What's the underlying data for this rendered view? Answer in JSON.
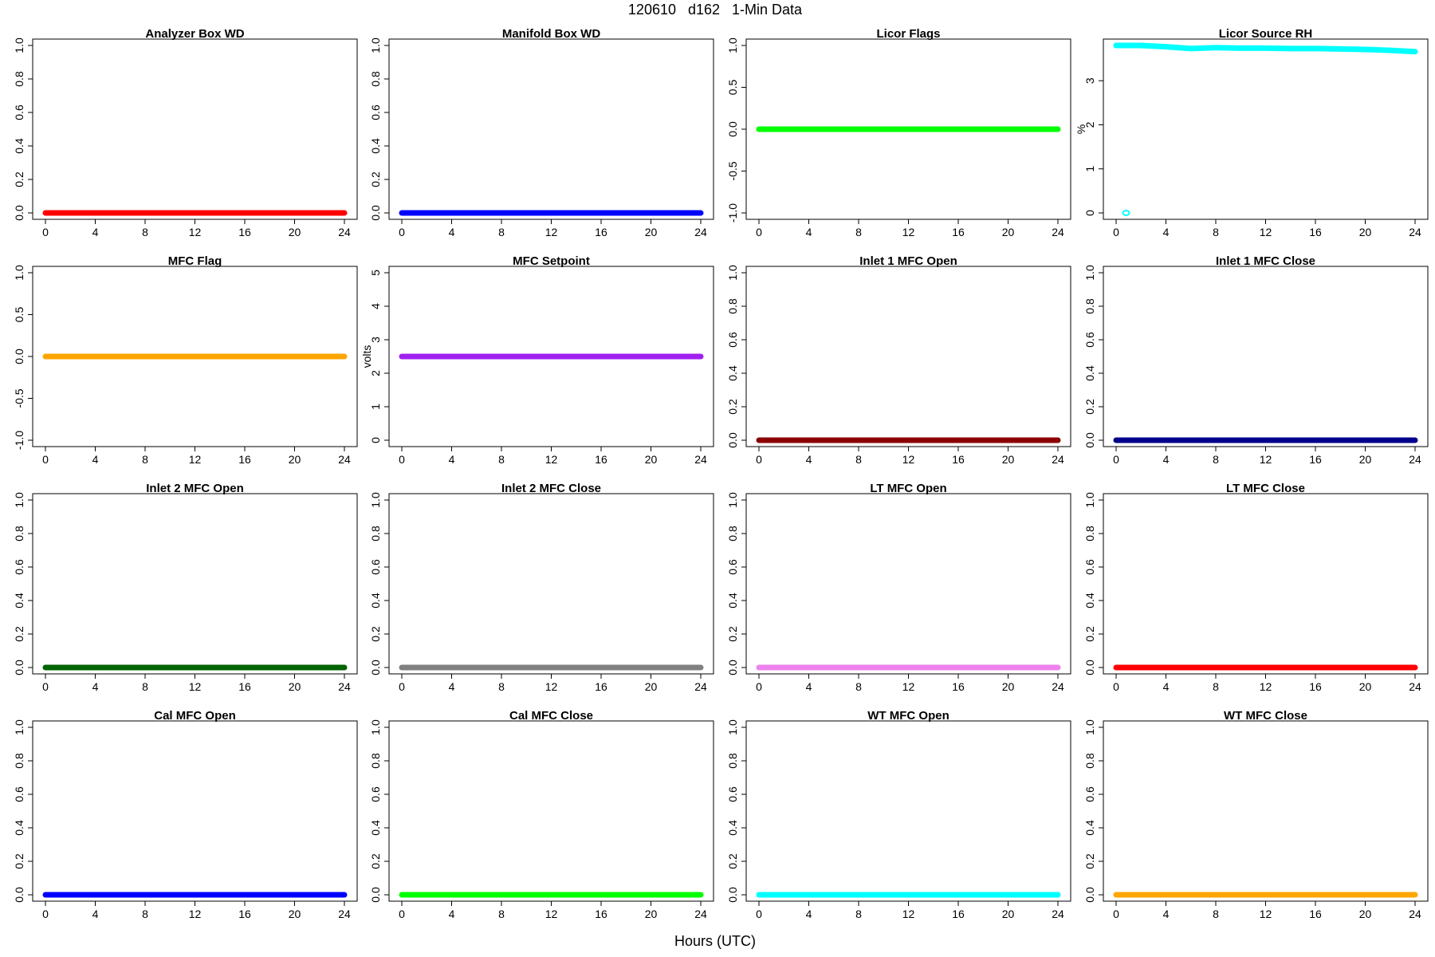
{
  "page": {
    "title": "120610   d162   1-Min Data",
    "xlabel": "Hours (UTC)"
  },
  "chart_data": [
    {
      "type": "scatter",
      "title": "Analyzer Box WD",
      "ylabel": "",
      "color": "#ff0000",
      "xlim": [
        0,
        24
      ],
      "ylim": [
        0,
        1
      ],
      "xticks": [
        "0",
        "4",
        "8",
        "12",
        "16",
        "20",
        "24"
      ],
      "yticks": [
        "0.0",
        "0.2",
        "0.4",
        "0.6",
        "0.8",
        "1.0"
      ],
      "series": [
        {
          "x": [
            0,
            24
          ],
          "y": [
            0,
            0
          ],
          "continuous": true
        }
      ]
    },
    {
      "type": "scatter",
      "title": "Manifold Box WD",
      "ylabel": "",
      "color": "#0000ff",
      "xlim": [
        0,
        24
      ],
      "ylim": [
        0,
        1
      ],
      "xticks": [
        "0",
        "4",
        "8",
        "12",
        "16",
        "20",
        "24"
      ],
      "yticks": [
        "0.0",
        "0.2",
        "0.4",
        "0.6",
        "0.8",
        "1.0"
      ],
      "series": [
        {
          "x": [
            0,
            24
          ],
          "y": [
            0,
            0
          ],
          "continuous": true
        }
      ]
    },
    {
      "type": "scatter",
      "title": "Licor Flags",
      "ylabel": "",
      "color": "#00ff00",
      "xlim": [
        0,
        24
      ],
      "ylim": [
        -1,
        1
      ],
      "xticks": [
        "0",
        "4",
        "8",
        "12",
        "16",
        "20",
        "24"
      ],
      "yticks": [
        "-1.0",
        "-0.5",
        "0.0",
        "0.5",
        "1.0"
      ],
      "series": [
        {
          "x": [
            0,
            24
          ],
          "y": [
            0,
            0
          ],
          "continuous": true
        }
      ]
    },
    {
      "type": "scatter",
      "title": "Licor Source RH",
      "ylabel": "%",
      "color": "#00ffff",
      "xlim": [
        0,
        24
      ],
      "ylim": [
        0,
        3.8
      ],
      "xticks": [
        "0",
        "4",
        "8",
        "12",
        "16",
        "20",
        "24"
      ],
      "yticks": [
        "0",
        "1",
        "2",
        "3"
      ],
      "series": [
        {
          "x": [
            0,
            2,
            4,
            6,
            8,
            10,
            12,
            14,
            16,
            18,
            20,
            22,
            24
          ],
          "y": [
            3.8,
            3.8,
            3.77,
            3.73,
            3.75,
            3.74,
            3.74,
            3.73,
            3.73,
            3.72,
            3.71,
            3.69,
            3.66
          ],
          "continuous": true
        },
        {
          "x": [
            0.8
          ],
          "y": [
            0
          ],
          "continuous": false
        }
      ]
    },
    {
      "type": "scatter",
      "title": "MFC Flag",
      "ylabel": "",
      "color": "#ffa500",
      "xlim": [
        0,
        24
      ],
      "ylim": [
        -1,
        1
      ],
      "xticks": [
        "0",
        "4",
        "8",
        "12",
        "16",
        "20",
        "24"
      ],
      "yticks": [
        "-1.0",
        "-0.5",
        "0.0",
        "0.5",
        "1.0"
      ],
      "series": [
        {
          "x": [
            0,
            24
          ],
          "y": [
            0,
            0
          ],
          "continuous": true
        }
      ]
    },
    {
      "type": "scatter",
      "title": "MFC Setpoint",
      "ylabel": "volts",
      "color": "#a020f0",
      "xlim": [
        0,
        24
      ],
      "ylim": [
        0,
        5
      ],
      "xticks": [
        "0",
        "4",
        "8",
        "12",
        "16",
        "20",
        "24"
      ],
      "yticks": [
        "0",
        "1",
        "2",
        "3",
        "4",
        "5"
      ],
      "series": [
        {
          "x": [
            0,
            24
          ],
          "y": [
            2.5,
            2.5
          ],
          "continuous": true
        }
      ]
    },
    {
      "type": "scatter",
      "title": "Inlet 1 MFC Open",
      "ylabel": "",
      "color": "#8b0000",
      "xlim": [
        0,
        24
      ],
      "ylim": [
        0,
        1
      ],
      "xticks": [
        "0",
        "4",
        "8",
        "12",
        "16",
        "20",
        "24"
      ],
      "yticks": [
        "0.0",
        "0.2",
        "0.4",
        "0.6",
        "0.8",
        "1.0"
      ],
      "series": [
        {
          "x": [
            0,
            24
          ],
          "y": [
            0,
            0
          ],
          "continuous": true
        }
      ]
    },
    {
      "type": "scatter",
      "title": "Inlet 1 MFC Close",
      "ylabel": "",
      "color": "#00008b",
      "xlim": [
        0,
        24
      ],
      "ylim": [
        0,
        1
      ],
      "xticks": [
        "0",
        "4",
        "8",
        "12",
        "16",
        "20",
        "24"
      ],
      "yticks": [
        "0.0",
        "0.2",
        "0.4",
        "0.6",
        "0.8",
        "1.0"
      ],
      "series": [
        {
          "x": [
            0,
            24
          ],
          "y": [
            0,
            0
          ],
          "continuous": true
        }
      ]
    },
    {
      "type": "scatter",
      "title": "Inlet 2 MFC Open",
      "ylabel": "",
      "color": "#006400",
      "xlim": [
        0,
        24
      ],
      "ylim": [
        0,
        1
      ],
      "xticks": [
        "0",
        "4",
        "8",
        "12",
        "16",
        "20",
        "24"
      ],
      "yticks": [
        "0.0",
        "0.2",
        "0.4",
        "0.6",
        "0.8",
        "1.0"
      ],
      "series": [
        {
          "x": [
            0,
            24
          ],
          "y": [
            0,
            0
          ],
          "continuous": true
        }
      ]
    },
    {
      "type": "scatter",
      "title": "Inlet 2 MFC Close",
      "ylabel": "",
      "color": "#808080",
      "xlim": [
        0,
        24
      ],
      "ylim": [
        0,
        1
      ],
      "xticks": [
        "0",
        "4",
        "8",
        "12",
        "16",
        "20",
        "24"
      ],
      "yticks": [
        "0.0",
        "0.2",
        "0.4",
        "0.6",
        "0.8",
        "1.0"
      ],
      "series": [
        {
          "x": [
            0,
            24
          ],
          "y": [
            0,
            0
          ],
          "continuous": true
        }
      ]
    },
    {
      "type": "scatter",
      "title": "LT MFC Open",
      "ylabel": "",
      "color": "#ee82ee",
      "xlim": [
        0,
        24
      ],
      "ylim": [
        0,
        1
      ],
      "xticks": [
        "0",
        "4",
        "8",
        "12",
        "16",
        "20",
        "24"
      ],
      "yticks": [
        "0.0",
        "0.2",
        "0.4",
        "0.6",
        "0.8",
        "1.0"
      ],
      "series": [
        {
          "x": [
            0,
            24
          ],
          "y": [
            0,
            0
          ],
          "continuous": true
        }
      ]
    },
    {
      "type": "scatter",
      "title": "LT MFC Close",
      "ylabel": "",
      "color": "#ff0000",
      "xlim": [
        0,
        24
      ],
      "ylim": [
        0,
        1
      ],
      "xticks": [
        "0",
        "4",
        "8",
        "12",
        "16",
        "20",
        "24"
      ],
      "yticks": [
        "0.0",
        "0.2",
        "0.4",
        "0.6",
        "0.8",
        "1.0"
      ],
      "series": [
        {
          "x": [
            0,
            24
          ],
          "y": [
            0,
            0
          ],
          "continuous": true
        }
      ]
    },
    {
      "type": "scatter",
      "title": "Cal MFC Open",
      "ylabel": "",
      "color": "#0000ff",
      "xlim": [
        0,
        24
      ],
      "ylim": [
        0,
        1
      ],
      "xticks": [
        "0",
        "4",
        "8",
        "12",
        "16",
        "20",
        "24"
      ],
      "yticks": [
        "0.0",
        "0.2",
        "0.4",
        "0.6",
        "0.8",
        "1.0"
      ],
      "series": [
        {
          "x": [
            0,
            24
          ],
          "y": [
            0,
            0
          ],
          "continuous": true
        }
      ]
    },
    {
      "type": "scatter",
      "title": "Cal MFC Close",
      "ylabel": "",
      "color": "#00ff00",
      "xlim": [
        0,
        24
      ],
      "ylim": [
        0,
        1
      ],
      "xticks": [
        "0",
        "4",
        "8",
        "12",
        "16",
        "20",
        "24"
      ],
      "yticks": [
        "0.0",
        "0.2",
        "0.4",
        "0.6",
        "0.8",
        "1.0"
      ],
      "series": [
        {
          "x": [
            0,
            24
          ],
          "y": [
            0,
            0
          ],
          "continuous": true
        }
      ]
    },
    {
      "type": "scatter",
      "title": "WT MFC Open",
      "ylabel": "",
      "color": "#00ffff",
      "xlim": [
        0,
        24
      ],
      "ylim": [
        0,
        1
      ],
      "xticks": [
        "0",
        "4",
        "8",
        "12",
        "16",
        "20",
        "24"
      ],
      "yticks": [
        "0.0",
        "0.2",
        "0.4",
        "0.6",
        "0.8",
        "1.0"
      ],
      "series": [
        {
          "x": [
            0,
            24
          ],
          "y": [
            0,
            0
          ],
          "continuous": true
        }
      ]
    },
    {
      "type": "scatter",
      "title": "WT MFC Close",
      "ylabel": "",
      "color": "#ffa500",
      "xlim": [
        0,
        24
      ],
      "ylim": [
        0,
        1
      ],
      "xticks": [
        "0",
        "4",
        "8",
        "12",
        "16",
        "20",
        "24"
      ],
      "yticks": [
        "0.0",
        "0.2",
        "0.4",
        "0.6",
        "0.8",
        "1.0"
      ],
      "series": [
        {
          "x": [
            0,
            24
          ],
          "y": [
            0,
            0
          ],
          "continuous": true
        }
      ]
    }
  ]
}
